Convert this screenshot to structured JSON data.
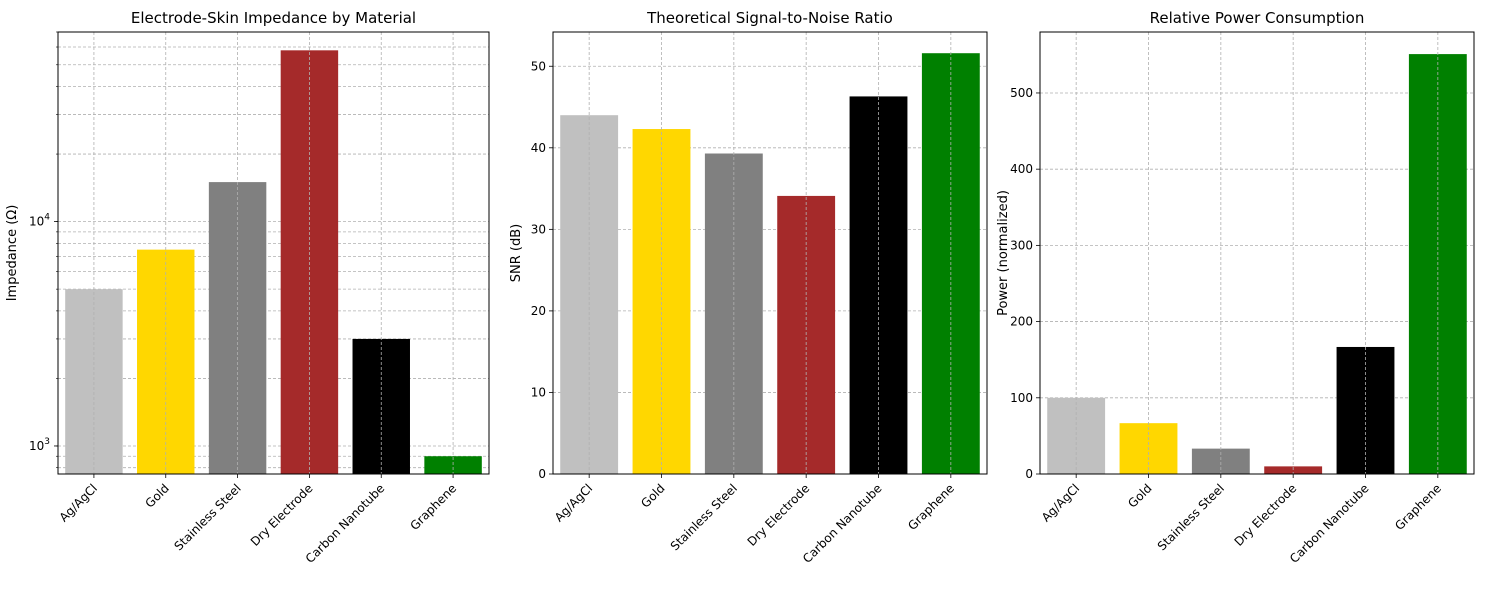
{
  "chart_data": [
    {
      "type": "bar",
      "title": "Electrode-Skin Impedance by Material",
      "xlabel": "",
      "ylabel": "Impedance (Ω)",
      "yscale": "log",
      "ylim": [
        750,
        70000
      ],
      "yticks": [
        1000,
        10000
      ],
      "ytick_labels": [
        {
          "base": "10",
          "exp": "3"
        },
        {
          "base": "10",
          "exp": "4"
        }
      ],
      "grid": true,
      "categories": [
        "Ag/AgCl",
        "Gold",
        "Stainless Steel",
        "Dry Electrode",
        "Carbon Nanotube",
        "Graphene"
      ],
      "values": [
        5000,
        7500,
        15000,
        58000,
        3000,
        900
      ],
      "colors": [
        "#c0c0c0",
        "#ffd700",
        "#808080",
        "#a52a2a",
        "#000000",
        "#008000"
      ]
    },
    {
      "type": "bar",
      "title": "Theoretical Signal-to-Noise Ratio",
      "xlabel": "",
      "ylabel": "SNR (dB)",
      "yscale": "linear",
      "ylim": [
        0,
        54.2
      ],
      "yticks": [
        0,
        10,
        20,
        30,
        40,
        50
      ],
      "grid": true,
      "categories": [
        "Ag/AgCl",
        "Gold",
        "Stainless Steel",
        "Dry Electrode",
        "Carbon Nanotube",
        "Graphene"
      ],
      "values": [
        44.0,
        42.3,
        39.3,
        34.1,
        46.3,
        51.6
      ],
      "colors": [
        "#c0c0c0",
        "#ffd700",
        "#808080",
        "#a52a2a",
        "#000000",
        "#008000"
      ]
    },
    {
      "type": "bar",
      "title": "Relative Power Consumption",
      "xlabel": "",
      "ylabel": "Power (normalized)",
      "yscale": "linear",
      "ylim": [
        0,
        580
      ],
      "yticks": [
        0,
        100,
        200,
        300,
        400,
        500
      ],
      "grid": true,
      "categories": [
        "Ag/AgCl",
        "Gold",
        "Stainless Steel",
        "Dry Electrode",
        "Carbon Nanotube",
        "Graphene"
      ],
      "values": [
        100,
        66.7,
        33.3,
        10,
        166.7,
        551
      ],
      "colors": [
        "#c0c0c0",
        "#ffd700",
        "#808080",
        "#a52a2a",
        "#000000",
        "#008000"
      ]
    }
  ]
}
